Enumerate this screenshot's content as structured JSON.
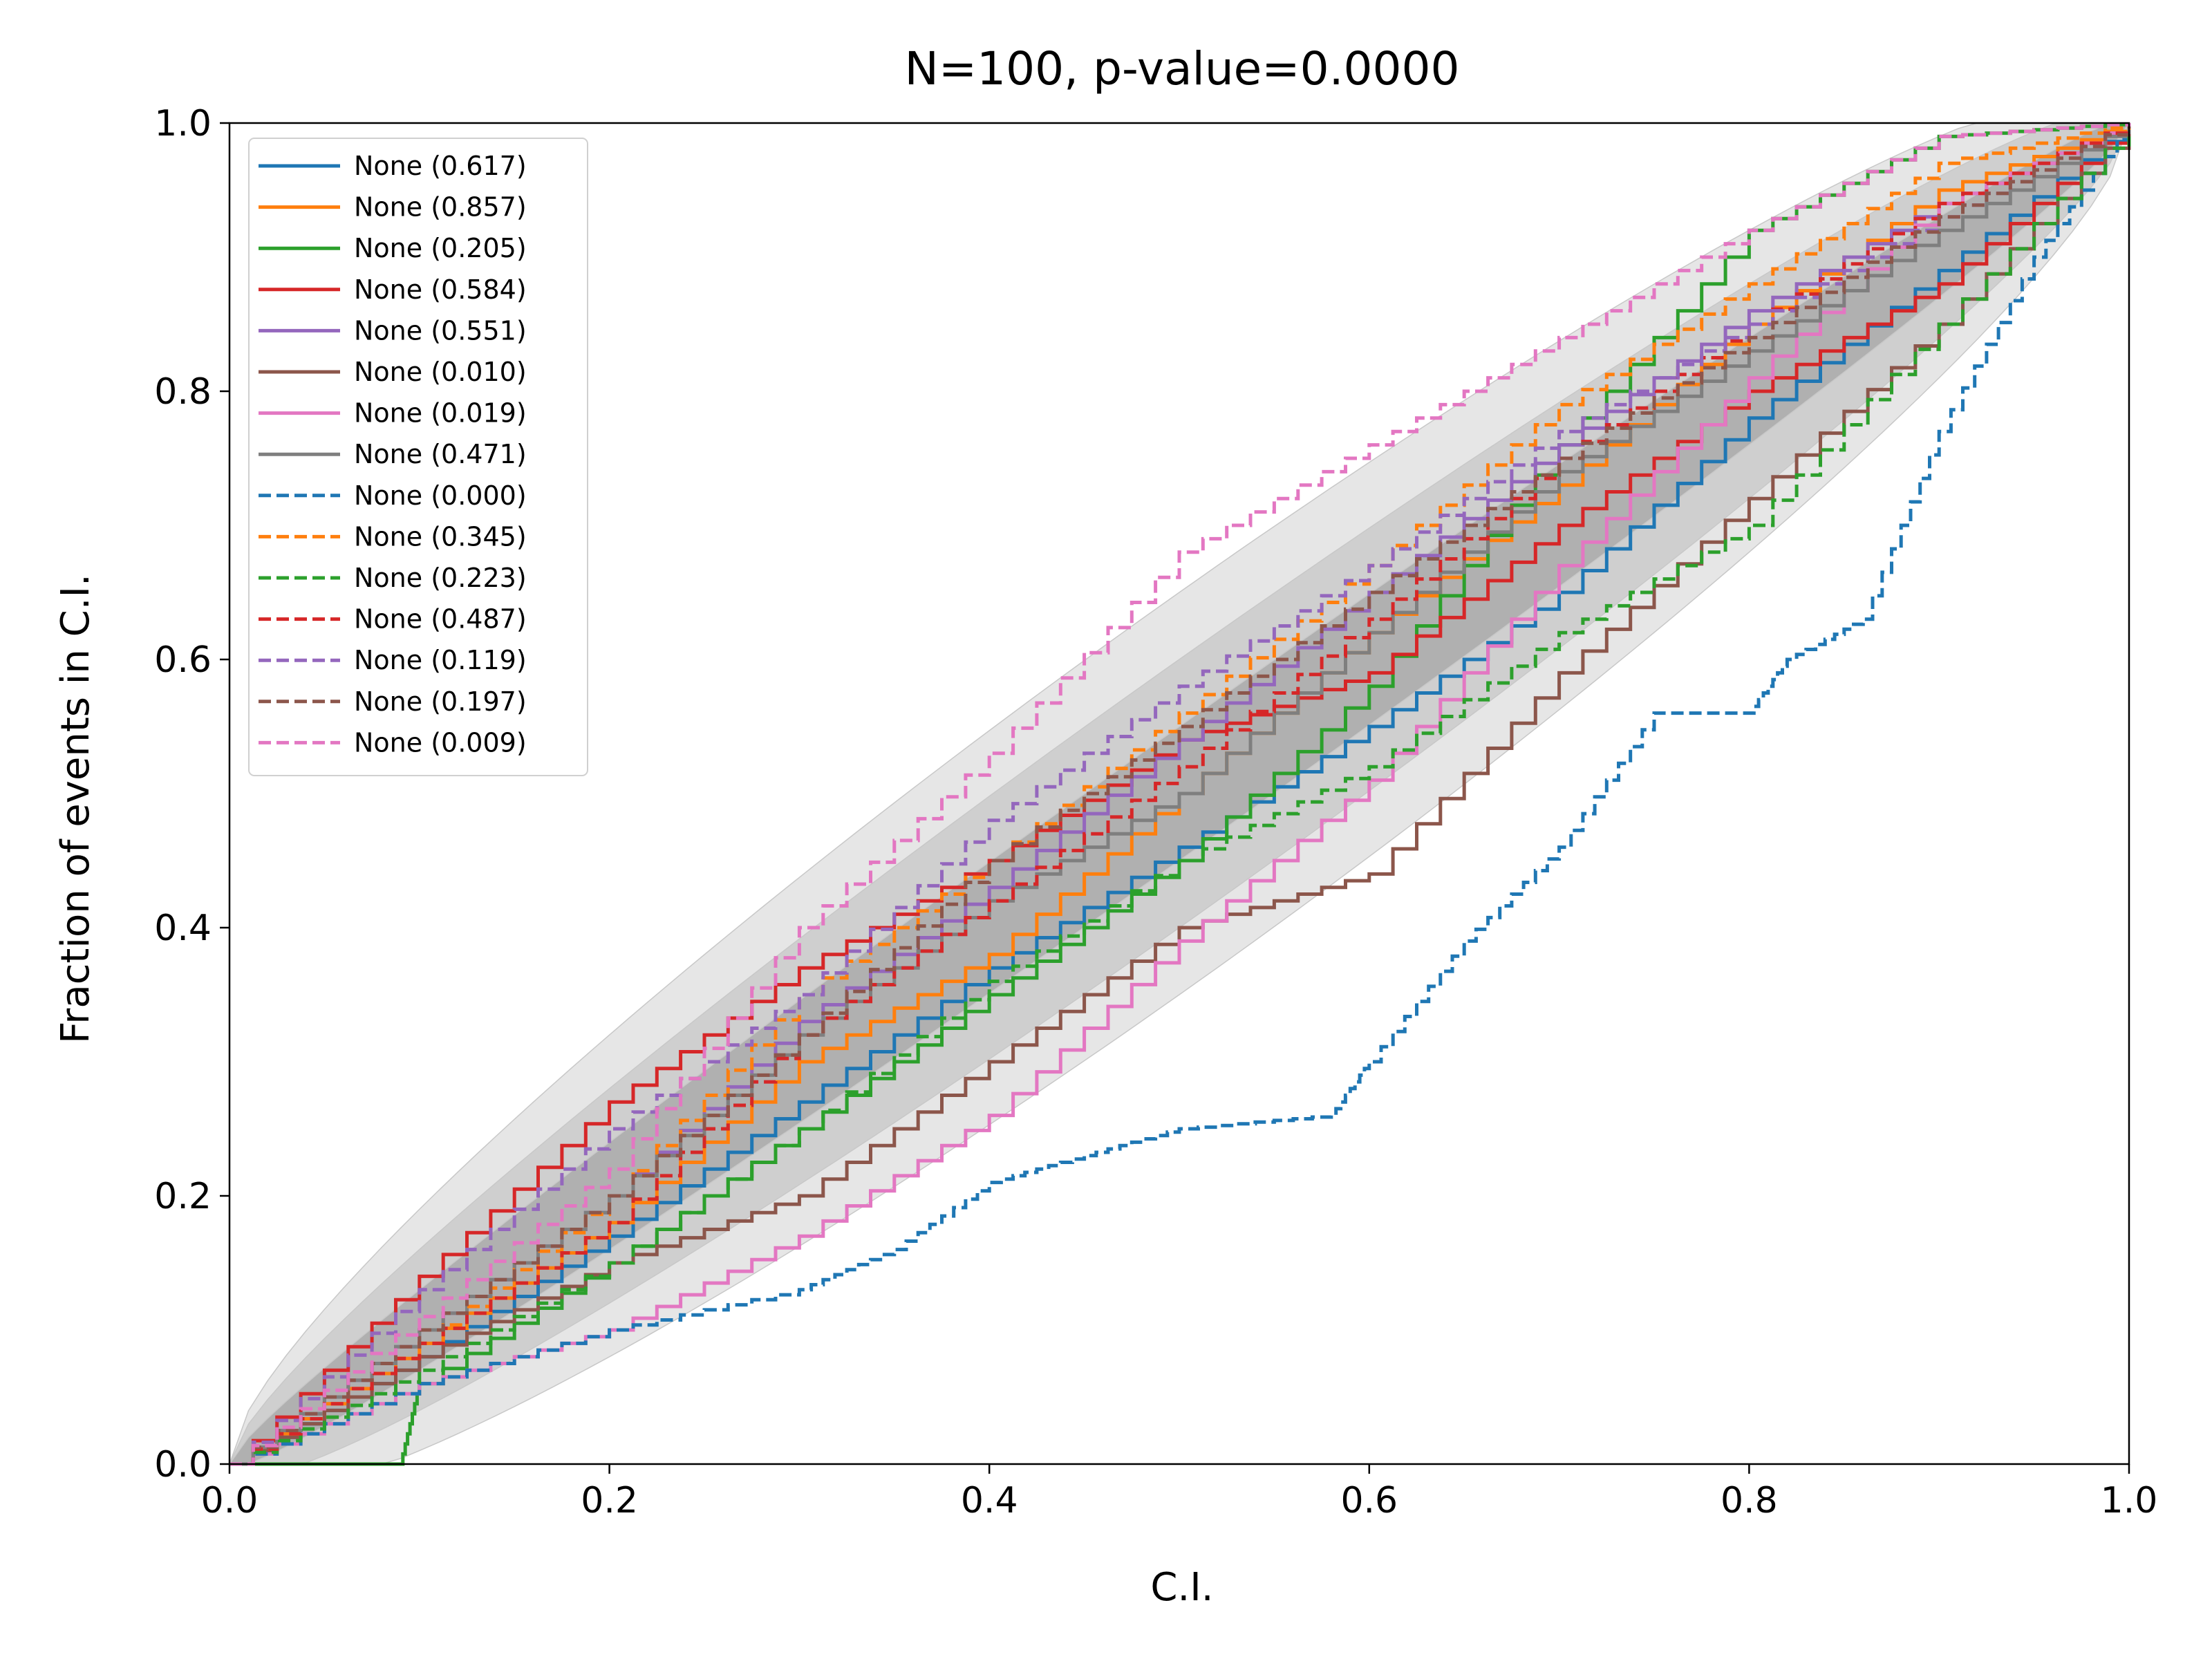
{
  "chart_data": {
    "type": "line",
    "title": "N=100, p-value=0.0000",
    "xlabel": "C.I.",
    "ylabel": "Fraction of events in C.I.",
    "xlim": [
      0.0,
      1.0
    ],
    "ylim": [
      0.0,
      1.0
    ],
    "xticks": [
      "0.0",
      "0.2",
      "0.4",
      "0.6",
      "0.8",
      "1.0"
    ],
    "yticks": [
      "0.0",
      "0.2",
      "0.4",
      "0.6",
      "0.8",
      "1.0"
    ],
    "grid": false,
    "legend_position": "upper-left",
    "confidence_bands": [
      {
        "level": "inner",
        "color": "#b0b0b0",
        "half_width_at_center": 0.05
      },
      {
        "level": "middle",
        "color": "#cfcfcf",
        "half_width_at_center": 0.1
      },
      {
        "level": "outer",
        "color": "#e6e6e6",
        "half_width_at_center": 0.15
      }
    ],
    "series": [
      {
        "name": "None (0.617)",
        "color": "#1f77b4",
        "dash": "solid",
        "points": [
          [
            0,
            0
          ],
          [
            0.1,
            0.08
          ],
          [
            0.2,
            0.17
          ],
          [
            0.3,
            0.27
          ],
          [
            0.4,
            0.37
          ],
          [
            0.5,
            0.46
          ],
          [
            0.6,
            0.55
          ],
          [
            0.7,
            0.65
          ],
          [
            0.8,
            0.78
          ],
          [
            0.9,
            0.89
          ],
          [
            1,
            1
          ]
        ]
      },
      {
        "name": "None (0.857)",
        "color": "#ff7f0e",
        "dash": "solid",
        "points": [
          [
            0,
            0
          ],
          [
            0.1,
            0.09
          ],
          [
            0.2,
            0.18
          ],
          [
            0.3,
            0.3
          ],
          [
            0.4,
            0.38
          ],
          [
            0.5,
            0.5
          ],
          [
            0.6,
            0.62
          ],
          [
            0.7,
            0.73
          ],
          [
            0.8,
            0.85
          ],
          [
            0.9,
            0.95
          ],
          [
            1,
            1
          ]
        ]
      },
      {
        "name": "None (0.205)",
        "color": "#2ca02c",
        "dash": "solid",
        "points": [
          [
            0,
            0
          ],
          [
            0.09,
            0.0
          ],
          [
            0.1,
            0.06
          ],
          [
            0.2,
            0.15
          ],
          [
            0.3,
            0.25
          ],
          [
            0.4,
            0.35
          ],
          [
            0.5,
            0.45
          ],
          [
            0.6,
            0.58
          ],
          [
            0.7,
            0.76
          ],
          [
            0.8,
            0.92
          ],
          [
            0.9,
            0.99
          ],
          [
            1,
            1
          ]
        ]
      },
      {
        "name": "None (0.584)",
        "color": "#d62728",
        "dash": "solid",
        "points": [
          [
            0,
            0
          ],
          [
            0.1,
            0.14
          ],
          [
            0.2,
            0.27
          ],
          [
            0.3,
            0.37
          ],
          [
            0.4,
            0.45
          ],
          [
            0.5,
            0.54
          ],
          [
            0.6,
            0.59
          ],
          [
            0.7,
            0.7
          ],
          [
            0.8,
            0.8
          ],
          [
            0.9,
            0.88
          ],
          [
            1,
            1
          ]
        ]
      },
      {
        "name": "None (0.551)",
        "color": "#9467bd",
        "dash": "solid",
        "points": [
          [
            0,
            0
          ],
          [
            0.1,
            0.1
          ],
          [
            0.2,
            0.2
          ],
          [
            0.3,
            0.33
          ],
          [
            0.4,
            0.43
          ],
          [
            0.5,
            0.54
          ],
          [
            0.6,
            0.65
          ],
          [
            0.7,
            0.76
          ],
          [
            0.8,
            0.86
          ],
          [
            0.9,
            0.94
          ],
          [
            1,
            1
          ]
        ]
      },
      {
        "name": "None (0.010)",
        "color": "#8c564b",
        "dash": "solid",
        "points": [
          [
            0,
            0
          ],
          [
            0.1,
            0.08
          ],
          [
            0.2,
            0.15
          ],
          [
            0.3,
            0.2
          ],
          [
            0.4,
            0.3
          ],
          [
            0.5,
            0.4
          ],
          [
            0.6,
            0.44
          ],
          [
            0.7,
            0.59
          ],
          [
            0.8,
            0.72
          ],
          [
            0.9,
            0.85
          ],
          [
            1,
            1
          ]
        ]
      },
      {
        "name": "None (0.019)",
        "color": "#e377c2",
        "dash": "solid",
        "points": [
          [
            0,
            0
          ],
          [
            0.1,
            0.06
          ],
          [
            0.2,
            0.1
          ],
          [
            0.3,
            0.17
          ],
          [
            0.4,
            0.26
          ],
          [
            0.5,
            0.39
          ],
          [
            0.6,
            0.51
          ],
          [
            0.7,
            0.67
          ],
          [
            0.8,
            0.81
          ],
          [
            0.9,
            0.94
          ],
          [
            1,
            1
          ]
        ]
      },
      {
        "name": "None (0.471)",
        "color": "#7f7f7f",
        "dash": "solid",
        "points": [
          [
            0,
            0
          ],
          [
            0.1,
            0.1
          ],
          [
            0.2,
            0.2
          ],
          [
            0.3,
            0.32
          ],
          [
            0.4,
            0.42
          ],
          [
            0.5,
            0.5
          ],
          [
            0.6,
            0.62
          ],
          [
            0.7,
            0.74
          ],
          [
            0.8,
            0.83
          ],
          [
            0.9,
            0.92
          ],
          [
            1,
            1
          ]
        ]
      },
      {
        "name": "None (0.000)",
        "color": "#1f77b4",
        "dash": "dashed",
        "points": [
          [
            0,
            0
          ],
          [
            0.1,
            0.06
          ],
          [
            0.2,
            0.1
          ],
          [
            0.3,
            0.13
          ],
          [
            0.35,
            0.16
          ],
          [
            0.4,
            0.21
          ],
          [
            0.45,
            0.23
          ],
          [
            0.5,
            0.25
          ],
          [
            0.58,
            0.26
          ],
          [
            0.6,
            0.3
          ],
          [
            0.65,
            0.39
          ],
          [
            0.7,
            0.46
          ],
          [
            0.75,
            0.56
          ],
          [
            0.8,
            0.56
          ],
          [
            0.82,
            0.6
          ],
          [
            0.86,
            0.63
          ],
          [
            0.9,
            0.77
          ],
          [
            0.95,
            0.9
          ],
          [
            1,
            1
          ]
        ]
      },
      {
        "name": "None (0.345)",
        "color": "#ff7f0e",
        "dash": "dashed",
        "points": [
          [
            0,
            0
          ],
          [
            0.1,
            0.09
          ],
          [
            0.2,
            0.2
          ],
          [
            0.3,
            0.35
          ],
          [
            0.4,
            0.45
          ],
          [
            0.5,
            0.56
          ],
          [
            0.6,
            0.67
          ],
          [
            0.7,
            0.79
          ],
          [
            0.8,
            0.88
          ],
          [
            0.9,
            0.97
          ],
          [
            1,
            1
          ]
        ]
      },
      {
        "name": "None (0.223)",
        "color": "#2ca02c",
        "dash": "dashed",
        "points": [
          [
            0,
            0
          ],
          [
            0.1,
            0.07
          ],
          [
            0.2,
            0.15
          ],
          [
            0.3,
            0.25
          ],
          [
            0.4,
            0.36
          ],
          [
            0.5,
            0.45
          ],
          [
            0.6,
            0.52
          ],
          [
            0.7,
            0.62
          ],
          [
            0.8,
            0.7
          ],
          [
            0.9,
            0.85
          ],
          [
            1,
            1
          ]
        ]
      },
      {
        "name": "None (0.487)",
        "color": "#d62728",
        "dash": "dashed",
        "points": [
          [
            0,
            0
          ],
          [
            0.1,
            0.09
          ],
          [
            0.2,
            0.18
          ],
          [
            0.3,
            0.32
          ],
          [
            0.4,
            0.42
          ],
          [
            0.5,
            0.52
          ],
          [
            0.6,
            0.63
          ],
          [
            0.7,
            0.75
          ],
          [
            0.8,
            0.85
          ],
          [
            0.9,
            0.94
          ],
          [
            1,
            1
          ]
        ]
      },
      {
        "name": "None (0.119)",
        "color": "#9467bd",
        "dash": "dashed",
        "points": [
          [
            0,
            0
          ],
          [
            0.1,
            0.13
          ],
          [
            0.2,
            0.25
          ],
          [
            0.3,
            0.35
          ],
          [
            0.4,
            0.48
          ],
          [
            0.5,
            0.58
          ],
          [
            0.6,
            0.67
          ],
          [
            0.7,
            0.77
          ],
          [
            0.8,
            0.85
          ],
          [
            0.9,
            0.93
          ],
          [
            1,
            1
          ]
        ]
      },
      {
        "name": "None (0.197)",
        "color": "#8c564b",
        "dash": "dashed",
        "points": [
          [
            0,
            0
          ],
          [
            0.1,
            0.1
          ],
          [
            0.2,
            0.2
          ],
          [
            0.3,
            0.32
          ],
          [
            0.4,
            0.45
          ],
          [
            0.5,
            0.55
          ],
          [
            0.6,
            0.65
          ],
          [
            0.7,
            0.75
          ],
          [
            0.8,
            0.84
          ],
          [
            0.9,
            0.93
          ],
          [
            1,
            1
          ]
        ]
      },
      {
        "name": "None (0.009)",
        "color": "#e377c2",
        "dash": "dashed",
        "points": [
          [
            0,
            0
          ],
          [
            0.1,
            0.11
          ],
          [
            0.2,
            0.22
          ],
          [
            0.3,
            0.4
          ],
          [
            0.4,
            0.53
          ],
          [
            0.5,
            0.68
          ],
          [
            0.6,
            0.76
          ],
          [
            0.7,
            0.84
          ],
          [
            0.8,
            0.92
          ],
          [
            0.9,
            0.99
          ],
          [
            1,
            1
          ]
        ]
      }
    ]
  }
}
